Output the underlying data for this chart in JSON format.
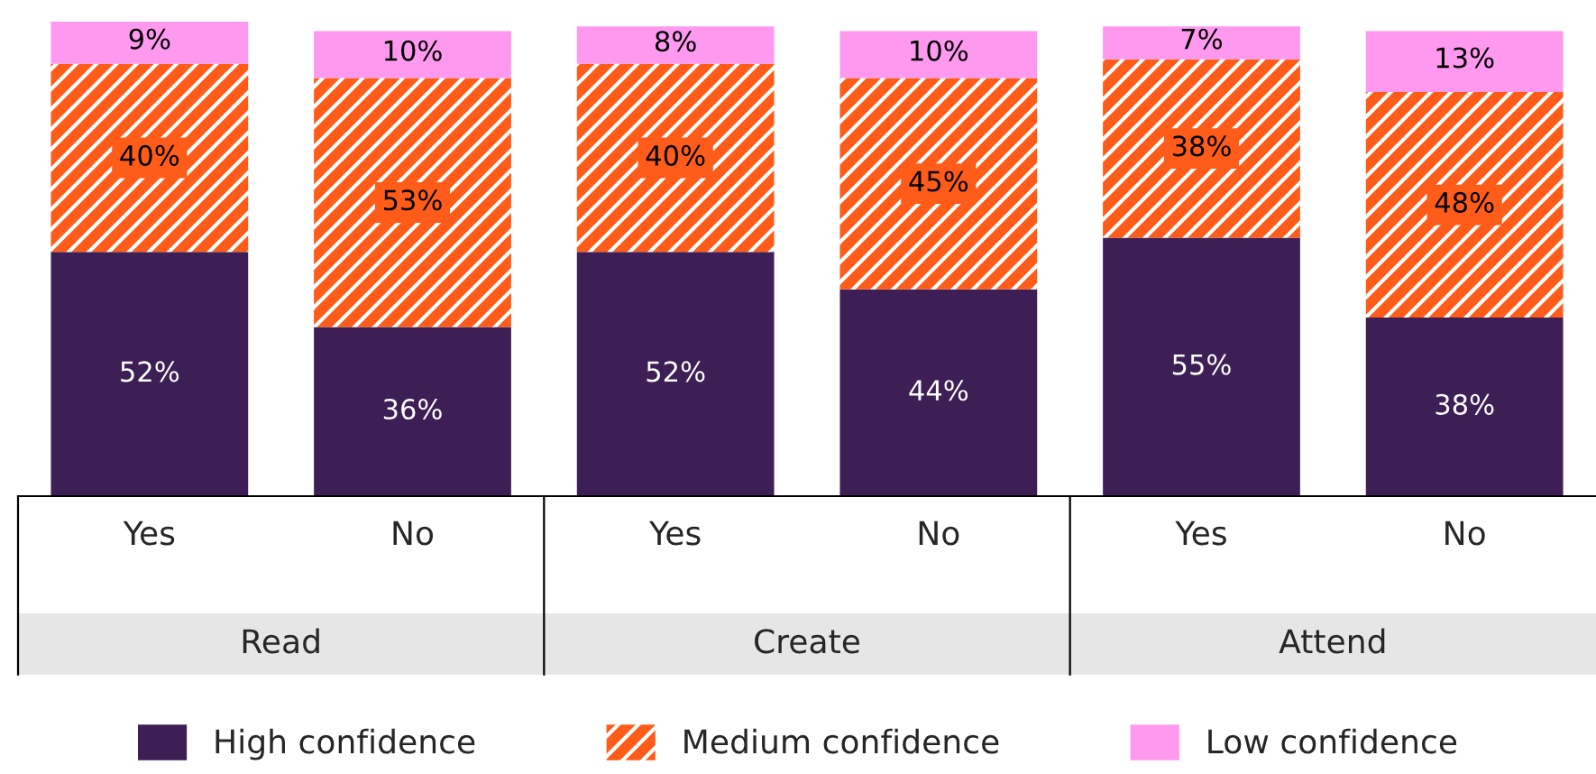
{
  "chart_data": {
    "type": "bar",
    "stacked": true,
    "categories": [
      "Yes",
      "No",
      "Yes",
      "No",
      "Yes",
      "No"
    ],
    "series": [
      {
        "name": "High confidence",
        "color": "#3d1f55",
        "values": [
          52,
          36,
          52,
          44,
          55,
          38
        ],
        "value_labels": [
          "52%",
          "36%",
          "52%",
          "44%",
          "55%",
          "38%"
        ]
      },
      {
        "name": "Medium confidence",
        "color": "#ff5c1a",
        "values": [
          40,
          53,
          40,
          45,
          38,
          48
        ],
        "value_labels": [
          "40%",
          "53%",
          "40%",
          "45%",
          "38%",
          "48%"
        ]
      },
      {
        "name": "Low confidence",
        "color": "#ff99f0",
        "values": [
          9,
          10,
          8,
          10,
          7,
          13
        ],
        "value_labels": [
          "9%",
          "10%",
          "8%",
          "10%",
          "7%",
          "13%"
        ]
      }
    ],
    "legend": "bottom",
    "annotations": [
      "Read",
      "Create",
      "Attend"
    ]
  }
}
